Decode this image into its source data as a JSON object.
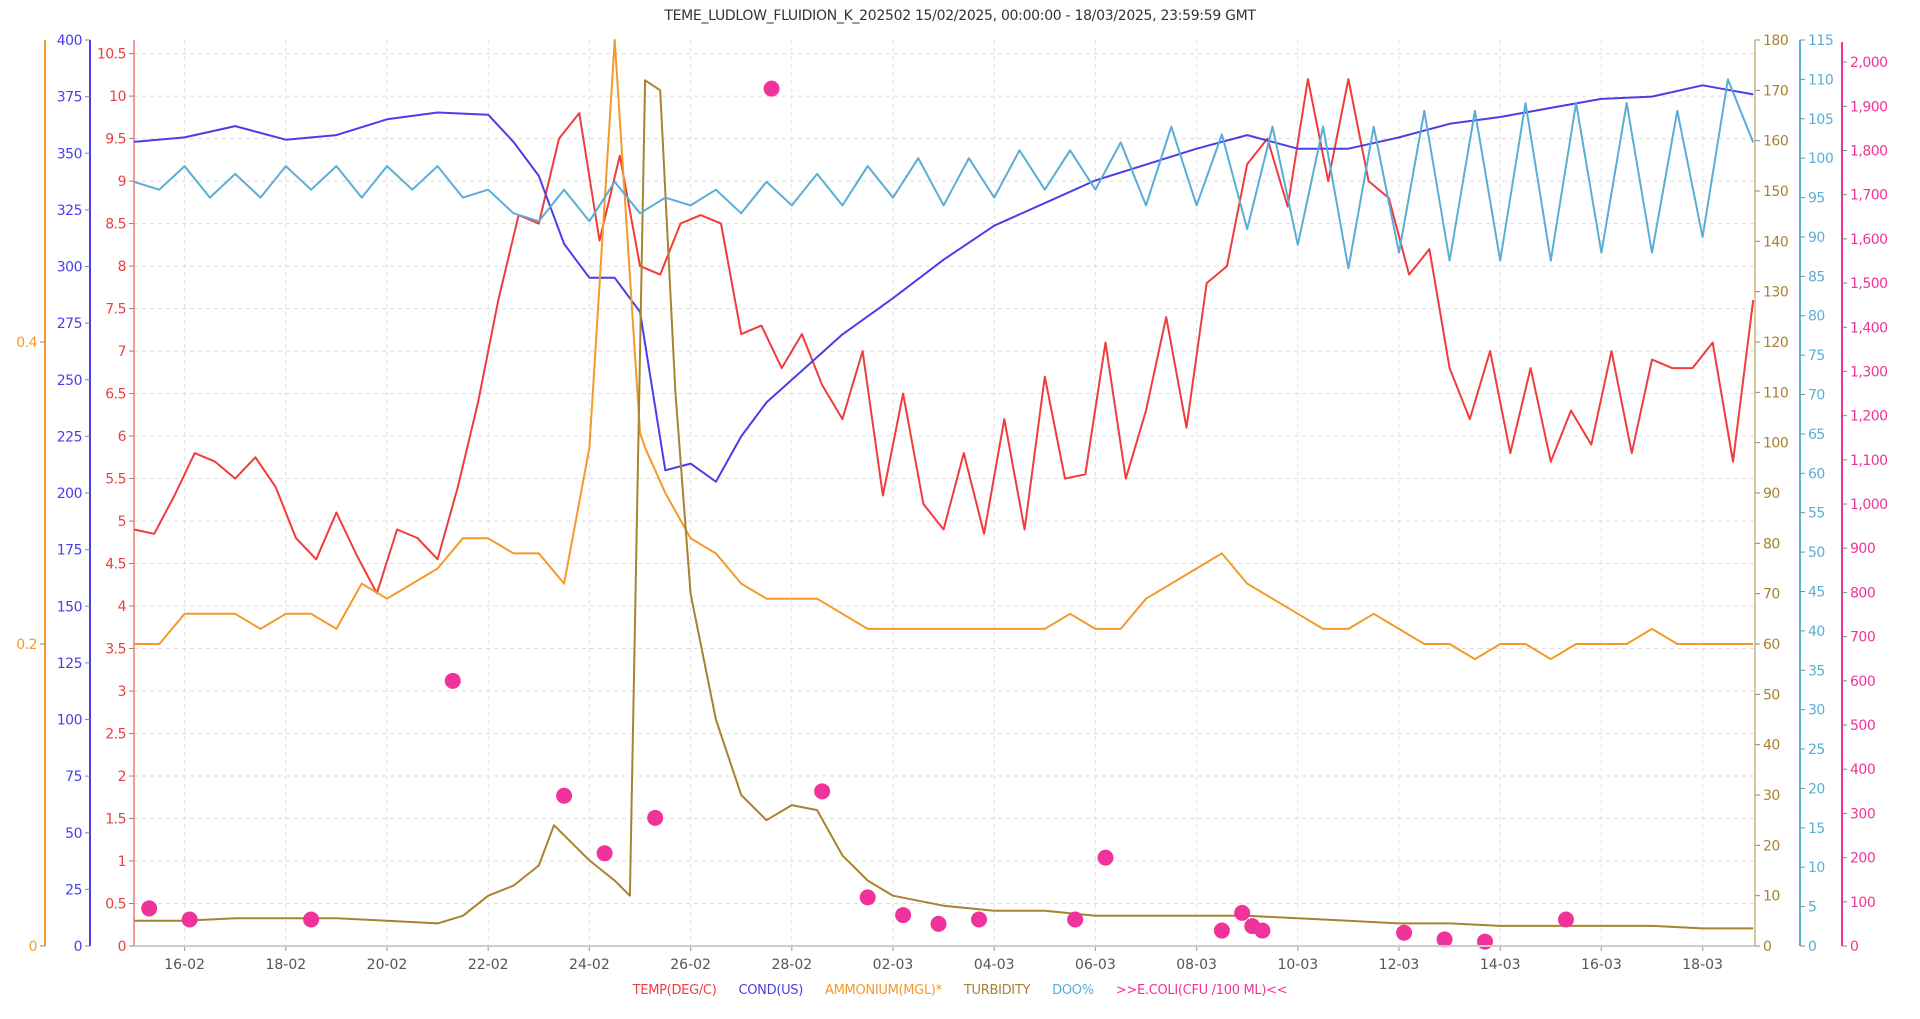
{
  "title": "TEME_LUDLOW_FLUIDION_K_202502 15/02/2025, 00:00:00 - 18/03/2025, 23:59:59 GMT",
  "legend": [
    {
      "label": "TEMP(DEG/C)",
      "color": "#f03c3c"
    },
    {
      "label": "COND(US)",
      "color": "#4a3ee8"
    },
    {
      "label": "AMMONIUM(MGL)*",
      "color": "#f59a2a"
    },
    {
      "label": "TURBIDITY",
      "color": "#a8832e"
    },
    {
      "label": "DOO%",
      "color": "#5aaed6"
    },
    {
      "label": ">>E.COLI(CFU /100 ML)<<",
      "color": "#f0339a"
    }
  ],
  "chart_data": {
    "type": "line",
    "title": "TEME_LUDLOW_FLUIDION_K_202502 15/02/2025, 00:00:00 - 18/03/2025, 23:59:59 GMT",
    "x_range": [
      "15/02/2025 00:00:00",
      "18/03/2025 23:59:59"
    ],
    "x_tick_labels": [
      "16-02",
      "18-02",
      "20-02",
      "22-02",
      "24-02",
      "26-02",
      "28-02",
      "02-03",
      "04-03",
      "06-03",
      "08-03",
      "10-03",
      "12-03",
      "14-03",
      "16-03",
      "18-03"
    ],
    "grid": true,
    "legend_position": "bottom",
    "axes": [
      {
        "id": "ammonium",
        "side": "left",
        "color": "#f59a2a",
        "range": [
          0,
          0.6
        ],
        "ticks": [
          "0",
          "0.2",
          "0.4"
        ]
      },
      {
        "id": "cond",
        "side": "left",
        "color": "#4a3ee8",
        "range": [
          0,
          400
        ],
        "ticks": [
          "0",
          "25",
          "50",
          "75",
          "100",
          "125",
          "150",
          "175",
          "200",
          "225",
          "250",
          "275",
          "300",
          "325",
          "350",
          "375",
          "400"
        ]
      },
      {
        "id": "temp",
        "side": "left",
        "color": "#f03c3c",
        "range": [
          0,
          10.66
        ],
        "ticks": [
          "0",
          "0.5",
          "1",
          "1.5",
          "2",
          "2.5",
          "3",
          "3.5",
          "4",
          "4.5",
          "5",
          "5.5",
          "6",
          "6.5",
          "7",
          "7.5",
          "8",
          "8.5",
          "9",
          "9.5",
          "10",
          "10.5"
        ]
      },
      {
        "id": "turbidity",
        "side": "right",
        "color": "#a8832e",
        "range": [
          0,
          180
        ],
        "ticks": [
          "0",
          "10",
          "20",
          "30",
          "40",
          "50",
          "60",
          "70",
          "80",
          "90",
          "100",
          "110",
          "120",
          "130",
          "140",
          "150",
          "160",
          "170",
          "180"
        ]
      },
      {
        "id": "do",
        "side": "right",
        "color": "#5aaed6",
        "range": [
          0,
          115
        ],
        "ticks": [
          "0",
          "5",
          "10",
          "15",
          "20",
          "25",
          "30",
          "35",
          "40",
          "45",
          "50",
          "55",
          "60",
          "65",
          "70",
          "75",
          "80",
          "85",
          "90",
          "95",
          "100",
          "105",
          "110",
          "115"
        ]
      },
      {
        "id": "ecoli",
        "side": "right",
        "color": "#f0339a",
        "range": [
          0,
          2050
        ],
        "ticks": [
          "0",
          "100",
          "200",
          "300",
          "400",
          "500",
          "600",
          "700",
          "800",
          "900",
          "1,000",
          "1,100",
          "1,200",
          "1,300",
          "1,400",
          "1,500",
          "1,600",
          "1,700",
          "1,800",
          "1,900",
          "2,000"
        ]
      }
    ],
    "series": [
      {
        "name": "TEMP(DEG/C)",
        "axis": "temp",
        "color": "#f03c3c",
        "x_days": [
          0,
          0.4,
          0.8,
          1.2,
          1.6,
          2.0,
          2.4,
          2.8,
          3.2,
          3.6,
          4.0,
          4.4,
          4.8,
          5.2,
          5.6,
          6.0,
          6.4,
          6.8,
          7.2,
          7.6,
          8.0,
          8.4,
          8.8,
          9.2,
          9.6,
          10.0,
          10.4,
          10.8,
          11.2,
          11.6,
          12.0,
          12.4,
          12.8,
          13.2,
          13.6,
          14.0,
          14.4,
          14.8,
          15.2,
          15.6,
          16.0,
          16.4,
          16.8,
          17.2,
          17.6,
          18.0,
          18.4,
          18.8,
          19.2,
          19.6,
          20.0,
          20.4,
          20.8,
          21.2,
          21.6,
          22.0,
          22.4,
          22.8,
          23.2,
          23.6,
          24.0,
          24.4,
          24.8,
          25.2,
          25.6,
          26.0,
          26.4,
          26.8,
          27.2,
          27.6,
          28.0,
          28.4,
          28.8,
          29.2,
          29.6,
          30.0,
          30.4,
          30.8,
          31.2,
          31.6,
          32.0
        ],
        "values": [
          4.9,
          4.85,
          5.3,
          5.8,
          5.7,
          5.5,
          5.75,
          5.4,
          4.8,
          4.55,
          5.1,
          4.6,
          4.15,
          4.9,
          4.8,
          4.55,
          5.4,
          6.4,
          7.6,
          8.6,
          8.5,
          9.5,
          9.8,
          8.3,
          9.3,
          8.0,
          7.9,
          8.5,
          8.6,
          8.5,
          7.2,
          7.3,
          6.8,
          7.2,
          6.6,
          6.2,
          7.0,
          5.3,
          6.5,
          5.2,
          4.9,
          5.8,
          4.85,
          6.2,
          4.9,
          6.7,
          5.5,
          5.55,
          7.1,
          5.5,
          6.3,
          7.4,
          6.1,
          7.8,
          8.0,
          9.2,
          9.5,
          8.7,
          10.2,
          9.0,
          10.2,
          9.0,
          8.8,
          7.9,
          8.2,
          6.8,
          6.2,
          7.0,
          5.8,
          6.8,
          5.7,
          6.3,
          5.9,
          7.0,
          5.8,
          6.9,
          6.8,
          6.8,
          7.1,
          5.7,
          7.6
        ]
      },
      {
        "name": "COND(US)",
        "axis": "cond",
        "color": "#4a3ee8",
        "x_days": [
          0,
          1,
          2,
          3,
          4,
          5,
          6,
          7,
          7.5,
          8,
          8.5,
          9,
          9.5,
          10,
          10.5,
          11,
          11.5,
          12,
          12.5,
          13,
          13.5,
          14,
          15,
          16,
          17,
          18,
          19,
          20,
          21,
          22,
          23,
          24,
          25,
          26,
          27,
          28,
          29,
          30,
          31,
          32
        ],
        "values": [
          355,
          357,
          362,
          356,
          358,
          365,
          368,
          367,
          355,
          340,
          310,
          295,
          295,
          280,
          210,
          213,
          205,
          225,
          240,
          250,
          260,
          270,
          286,
          303,
          318,
          328,
          338,
          345,
          352,
          358,
          352,
          352,
          357,
          363,
          366,
          370,
          374,
          375,
          380,
          376
        ]
      },
      {
        "name": "AMMONIUM(MGL)*",
        "axis": "ammonium",
        "color": "#f59a2a",
        "x_days": [
          0,
          0.5,
          1,
          1.5,
          2,
          2.5,
          3,
          3.5,
          4,
          4.5,
          5,
          5.5,
          6,
          6.5,
          7,
          7.5,
          8,
          8.5,
          9,
          9.5,
          10,
          10.1,
          10.5,
          11,
          11.5,
          12,
          12.5,
          13,
          13.5,
          14,
          14.5,
          15,
          15.5,
          16,
          16.5,
          17,
          17.5,
          18,
          18.5,
          19,
          19.5,
          20,
          20.5,
          21,
          21.5,
          22,
          22.5,
          23,
          23.5,
          24,
          24.5,
          25,
          25.5,
          26,
          26.5,
          27,
          27.5,
          28,
          28.5,
          29,
          29.5,
          30,
          30.5,
          31,
          31.5,
          32
        ],
        "values": [
          0.2,
          0.2,
          0.22,
          0.22,
          0.22,
          0.21,
          0.22,
          0.22,
          0.21,
          0.24,
          0.23,
          0.24,
          0.25,
          0.27,
          0.27,
          0.26,
          0.26,
          0.24,
          0.33,
          0.6,
          0.34,
          0.33,
          0.3,
          0.27,
          0.26,
          0.24,
          0.23,
          0.23,
          0.23,
          0.22,
          0.21,
          0.21,
          0.21,
          0.21,
          0.21,
          0.21,
          0.21,
          0.21,
          0.22,
          0.21,
          0.21,
          0.23,
          0.24,
          0.25,
          0.26,
          0.24,
          0.23,
          0.22,
          0.21,
          0.21,
          0.22,
          0.21,
          0.2,
          0.2,
          0.19,
          0.2,
          0.2,
          0.19,
          0.2,
          0.2,
          0.2,
          0.21,
          0.2,
          0.2,
          0.2,
          0.2
        ]
      },
      {
        "name": "TURBIDITY",
        "axis": "turbidity",
        "color": "#a8832e",
        "x_days": [
          0,
          1,
          2,
          3,
          4,
          5,
          6,
          6.5,
          7,
          7.5,
          8,
          8.3,
          8.6,
          9,
          9.5,
          9.8,
          10.1,
          10.4,
          10.7,
          11,
          11.5,
          12,
          12.5,
          13,
          13.5,
          14,
          14.5,
          15,
          16,
          17,
          18,
          19,
          20,
          21,
          22,
          23,
          24,
          25,
          26,
          27,
          28,
          29,
          30,
          31,
          32
        ],
        "values": [
          5,
          5,
          5.5,
          5.5,
          5.5,
          5,
          4.5,
          6,
          10,
          12,
          16,
          24,
          21,
          17,
          13,
          10,
          172,
          170,
          110,
          70,
          45,
          30,
          25,
          28,
          27,
          18,
          13,
          10,
          8,
          7,
          7,
          6,
          6,
          6,
          6,
          5.5,
          5,
          4.5,
          4.5,
          4,
          4,
          4,
          4,
          3.5,
          3.5
        ]
      },
      {
        "name": "DOO%",
        "axis": "do",
        "color": "#5aaed6",
        "x_days": [
          0,
          0.5,
          1,
          1.5,
          2,
          2.5,
          3,
          3.5,
          4,
          4.5,
          5,
          5.5,
          6,
          6.5,
          7,
          7.5,
          8,
          8.5,
          9,
          9.5,
          10,
          10.5,
          11,
          11.5,
          12,
          12.5,
          13,
          13.5,
          14,
          14.5,
          15,
          15.5,
          16,
          16.5,
          17,
          17.5,
          18,
          18.5,
          19,
          19.5,
          20,
          20.5,
          21,
          21.5,
          22,
          22.5,
          23,
          23.5,
          24,
          24.5,
          25,
          25.5,
          26,
          26.5,
          27,
          27.5,
          28,
          28.5,
          29,
          29.5,
          30,
          30.5,
          31,
          31.5,
          32
        ],
        "values": [
          97,
          96,
          99,
          95,
          98,
          95,
          99,
          96,
          99,
          95,
          99,
          96,
          99,
          95,
          96,
          93,
          92,
          96,
          92,
          97,
          93,
          95,
          94,
          96,
          93,
          97,
          94,
          98,
          94,
          99,
          95,
          100,
          94,
          100,
          95,
          101,
          96,
          101,
          96,
          102,
          94,
          104,
          94,
          103,
          91,
          104,
          89,
          104,
          86,
          104,
          88,
          106,
          87,
          106,
          87,
          107,
          87,
          107,
          88,
          107,
          88,
          106,
          90,
          110,
          102
        ]
      },
      {
        "name": ">>E.COLI(CFU /100 ML)<<",
        "axis": "ecoli",
        "type": "scatter",
        "color": "#f0339a",
        "x_days": [
          0.3,
          1.1,
          3.5,
          6.3,
          8.5,
          9.3,
          12.6,
          13.6,
          10.3,
          14.5,
          15.2,
          15.9,
          16.7,
          18.6,
          19.2,
          21.5,
          21.9,
          22.1,
          22.3,
          25.1,
          25.9,
          26.7,
          28.3
        ],
        "values": [
          85,
          60,
          60,
          600,
          340,
          210,
          1940,
          350,
          290,
          110,
          70,
          50,
          60,
          60,
          200,
          35,
          75,
          45,
          35,
          30,
          15,
          10,
          60
        ]
      }
    ]
  }
}
